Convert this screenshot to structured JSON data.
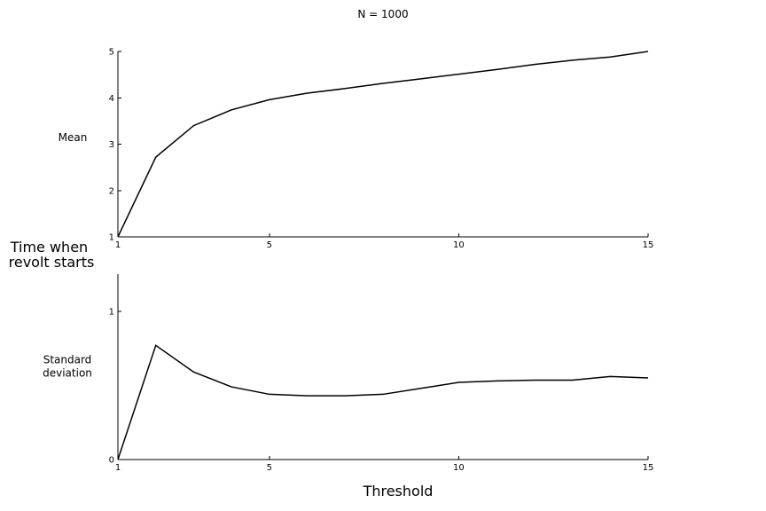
{
  "title": "N = 1000",
  "ylabel": "Time when revolt starts",
  "ylabel_lines": [
    "Time when",
    "revolt starts"
  ],
  "xlabel": "Threshold",
  "line_color": "#000000",
  "chart_data": [
    {
      "type": "line",
      "panel_label": "Mean",
      "panel_label_lines": [
        "Mean"
      ],
      "x": [
        1,
        2,
        3,
        4,
        5,
        6,
        7,
        8,
        9,
        10,
        11,
        12,
        13,
        14,
        15
      ],
      "y": [
        1.0,
        2.72,
        3.4,
        3.74,
        3.96,
        4.1,
        4.2,
        4.31,
        4.41,
        4.51,
        4.61,
        4.72,
        4.81,
        4.88,
        5.0
      ],
      "xlim": [
        1,
        15
      ],
      "ylim": [
        1,
        5
      ],
      "xticks": [
        1,
        5,
        10,
        15
      ],
      "yticks": [
        1,
        2,
        3,
        4,
        5
      ],
      "grid": false
    },
    {
      "type": "line",
      "panel_label": "Standard deviation",
      "panel_label_lines": [
        "Standard",
        "deviation"
      ],
      "x": [
        1,
        2,
        3,
        4,
        5,
        6,
        7,
        8,
        9,
        10,
        11,
        12,
        13,
        14,
        15
      ],
      "y": [
        0.0,
        0.77,
        0.59,
        0.49,
        0.44,
        0.43,
        0.43,
        0.44,
        0.48,
        0.52,
        0.53,
        0.535,
        0.535,
        0.56,
        0.55
      ],
      "xlim": [
        1,
        15
      ],
      "ylim": [
        0,
        1.25
      ],
      "xticks": [
        1,
        5,
        10,
        15
      ],
      "yticks": [
        0,
        1
      ],
      "grid": false
    }
  ]
}
